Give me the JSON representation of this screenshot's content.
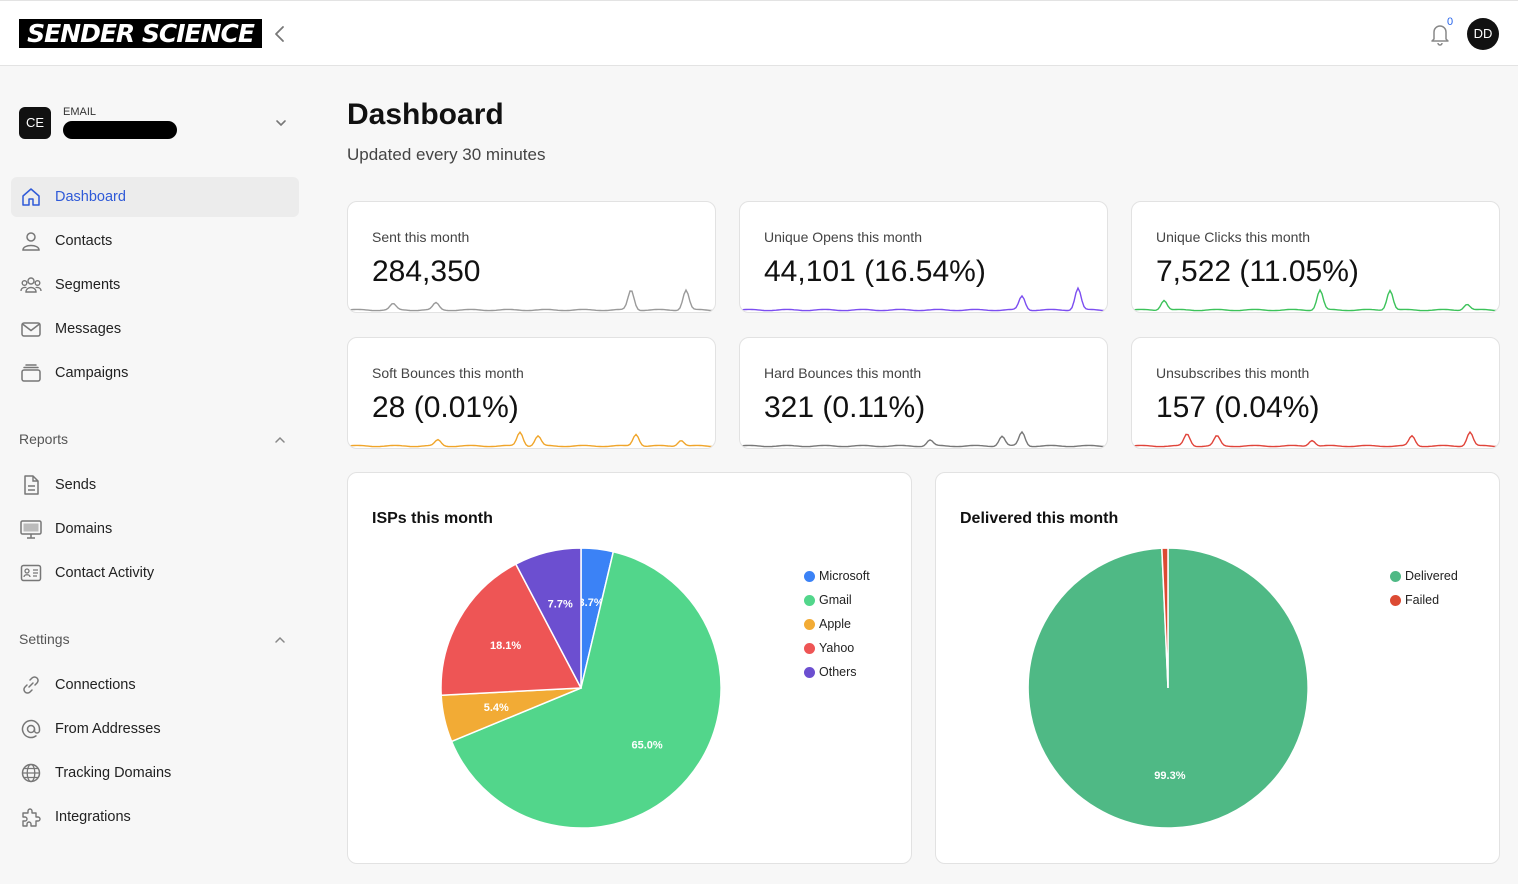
{
  "header": {
    "logo_text": "SENDER SCIENCE",
    "notification_count": "0",
    "user_initials": "DD"
  },
  "account": {
    "initials": "CE",
    "label": "EMAIL"
  },
  "sidebar": {
    "main_items": [
      {
        "label": "Dashboard",
        "icon": "home-icon",
        "active": true
      },
      {
        "label": "Contacts",
        "icon": "person-icon"
      },
      {
        "label": "Segments",
        "icon": "group-icon"
      },
      {
        "label": "Messages",
        "icon": "mail-icon"
      },
      {
        "label": "Campaigns",
        "icon": "stack-icon"
      }
    ],
    "reports_label": "Reports",
    "reports_items": [
      {
        "label": "Sends",
        "icon": "document-icon"
      },
      {
        "label": "Domains",
        "icon": "monitor-icon"
      },
      {
        "label": "Contact Activity",
        "icon": "id-card-icon"
      }
    ],
    "settings_label": "Settings",
    "settings_items": [
      {
        "label": "Connections",
        "icon": "link-icon"
      },
      {
        "label": "From Addresses",
        "icon": "at-icon"
      },
      {
        "label": "Tracking Domains",
        "icon": "globe-icon"
      },
      {
        "label": "Integrations",
        "icon": "puzzle-icon"
      }
    ]
  },
  "page": {
    "title": "Dashboard",
    "subtitle": "Updated every 30 minutes"
  },
  "stats": [
    {
      "label": "Sent this month",
      "value": "284,350",
      "color": "#9a9a9a"
    },
    {
      "label": "Unique Opens this month",
      "value": "44,101 (16.54%)",
      "color": "#7c4ef0"
    },
    {
      "label": "Unique Clicks this month",
      "value": "7,522 (11.05%)",
      "color": "#3cc25a"
    },
    {
      "label": "Soft Bounces this month",
      "value": "28 (0.01%)",
      "color": "#f0a52a"
    },
    {
      "label": "Hard Bounces this month",
      "value": "321 (0.11%)",
      "color": "#777777"
    },
    {
      "label": "Unsubscribes this month",
      "value": "157 (0.04%)",
      "color": "#e0443a"
    }
  ],
  "chart_data": [
    {
      "type": "pie",
      "title": "ISPs this month",
      "categories": [
        "Microsoft",
        "Gmail",
        "Apple",
        "Yahoo",
        "Others"
      ],
      "values": [
        3.7,
        65.0,
        5.4,
        18.1,
        7.7
      ],
      "labels": [
        "3.7%",
        "65.0%",
        "5.4%",
        "18.1%",
        "7.7%"
      ],
      "colors": [
        "#3b82f6",
        "#52d68b",
        "#f2ab35",
        "#ee5555",
        "#6c4fd0"
      ],
      "legend": "right"
    },
    {
      "type": "pie",
      "title": "Delivered this month",
      "categories": [
        "Delivered",
        "Failed"
      ],
      "values": [
        99.3,
        0.7
      ],
      "labels": [
        "99.3%",
        ""
      ],
      "colors": [
        "#4fb985",
        "#dc4a33"
      ],
      "legend": "right"
    }
  ]
}
